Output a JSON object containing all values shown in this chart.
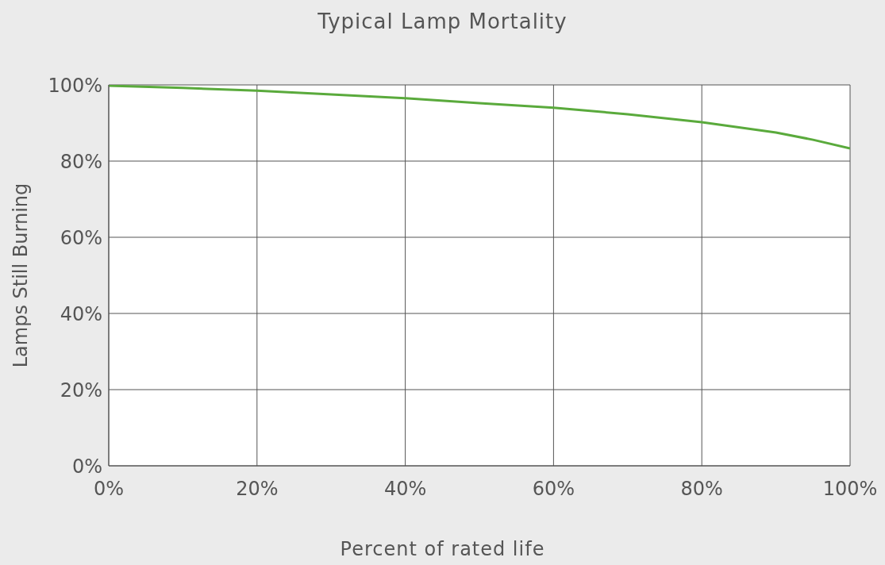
{
  "chart_data": {
    "type": "line",
    "title": "Typical Lamp Mortality",
    "xlabel": "Percent of rated life",
    "ylabel": "Lamps Still Burning",
    "x": [
      0,
      10,
      20,
      30,
      40,
      50,
      60,
      70,
      80,
      90,
      95,
      100
    ],
    "series": [
      {
        "color": "#5aaa3c",
        "values": [
          99.8,
          99.2,
          98.5,
          97.5,
          96.5,
          95.2,
          94,
          92.3,
          90.2,
          87.5,
          85.6,
          83.3
        ]
      }
    ],
    "xlim": [
      0,
      100
    ],
    "xticks": [
      {
        "value": 0,
        "label": "0%"
      },
      {
        "value": 20,
        "label": "20%"
      },
      {
        "value": 40,
        "label": "40%"
      },
      {
        "value": 60,
        "label": "60%"
      },
      {
        "value": 80,
        "label": "80%"
      },
      {
        "value": 100,
        "label": "100%"
      }
    ],
    "ylim": [
      0,
      100
    ],
    "yticks": [
      {
        "value": 0,
        "label": "0%"
      },
      {
        "value": 20,
        "label": "20%"
      },
      {
        "value": 40,
        "label": "40%"
      },
      {
        "value": 60,
        "label": "60%"
      },
      {
        "value": 80,
        "label": "80%"
      },
      {
        "value": 100,
        "label": "100%"
      }
    ],
    "grid": true
  }
}
